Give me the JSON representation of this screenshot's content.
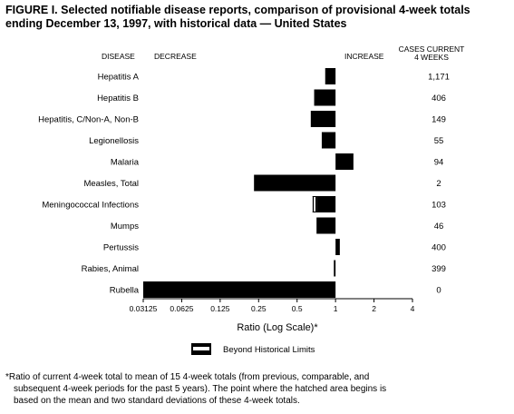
{
  "figure": {
    "title": "FIGURE I. Selected notifiable disease reports, comparison of provisional 4-week totals ending December 13, 1997, with historical data — United States",
    "title_lines": [
      "FIGURE I. Selected notifiable disease reports, comparison of provisional 4-week totals",
      "ending December 13, 1997, with historical data — United States"
    ],
    "footnote_lines": [
      "*Ratio of current 4-week total to mean of 15 4-week totals (from previous, comparable, and",
      "subsequent 4-week periods for the past 5 years). The point where the hatched area begins is",
      "based on the mean and two standard deviations of these 4-week totals."
    ]
  },
  "chart_data": {
    "type": "bar",
    "orientation": "horizontal",
    "headers": {
      "disease": "DISEASE",
      "decrease": "DECREASE",
      "increase": "INCREASE",
      "cases_line1": "CASES CURRENT",
      "cases_line2": "4 WEEKS"
    },
    "categories": [
      "Hepatitis A",
      "Hepatitis B",
      "Hepatitis, C/Non-A, Non-B",
      "Legionellosis",
      "Malaria",
      "Measles, Total",
      "Meningococcal Infections",
      "Mumps",
      "Pertussis",
      "Rabies, Animal",
      "Rubella"
    ],
    "values": [
      0.83,
      0.68,
      0.64,
      0.78,
      1.38,
      0.23,
      0.66,
      0.71,
      1.08,
      0.97,
      0.03125
    ],
    "cases_current_4_weeks": [
      "1,171",
      "406",
      "149",
      "55",
      "94",
      "2",
      "103",
      "46",
      "400",
      "399",
      "0"
    ],
    "beyond_historical_limits_from": [
      null,
      null,
      null,
      null,
      null,
      null,
      0.71,
      null,
      null,
      null,
      null
    ],
    "xlabel": "Ratio (Log Scale)*",
    "x_scale": "log2",
    "xlim": [
      0.03125,
      4
    ],
    "xticks": [
      0.03125,
      0.0625,
      0.125,
      0.25,
      0.5,
      1,
      2,
      4
    ],
    "xtick_labels": [
      "0.03125",
      "0.0625",
      "0.125",
      "0.25",
      "0.5",
      "1",
      "2",
      "4"
    ],
    "baseline": 1,
    "legend": {
      "label": "Beyond Historical Limits",
      "placement": "bottom-center"
    },
    "bar_color": "#000000",
    "grid": false
  }
}
